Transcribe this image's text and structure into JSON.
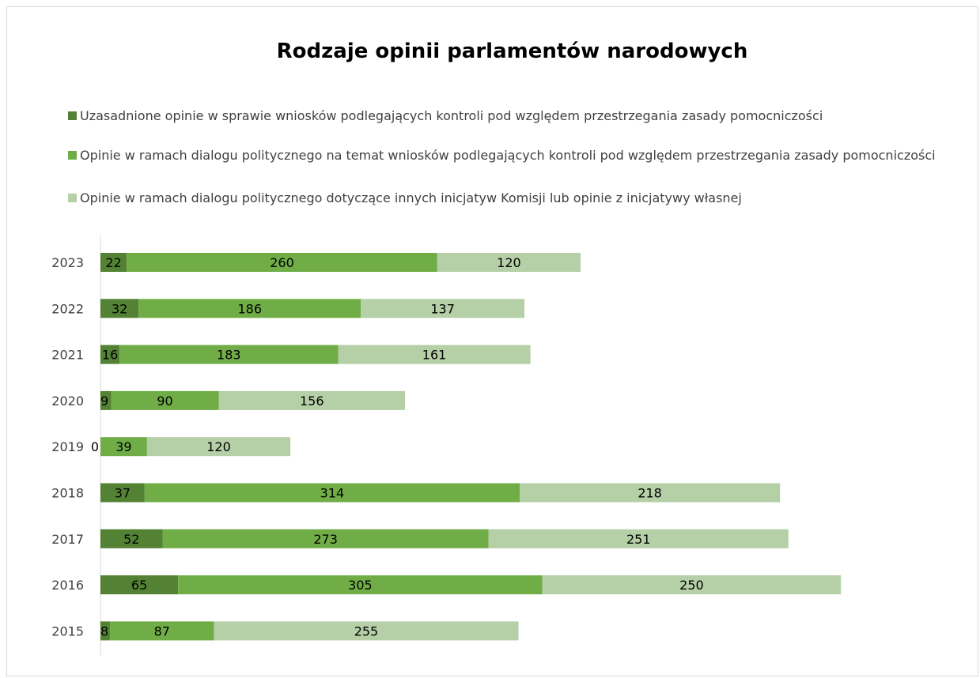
{
  "chart_data": {
    "type": "bar",
    "orientation": "horizontal",
    "stacked": true,
    "title": "Rodzaje opinii parlamentów narodowych",
    "categories": [
      "2023",
      "2022",
      "2021",
      "2020",
      "2019",
      "2018",
      "2017",
      "2016",
      "2015"
    ],
    "series": [
      {
        "name": "Uzasadnione opinie w sprawie wniosków podlegających kontroli pod względem przestrzegania zasady pomocniczości",
        "color": "#548235",
        "values": [
          22,
          32,
          16,
          9,
          0,
          37,
          52,
          65,
          8
        ]
      },
      {
        "name": "Opinie w ramach dialogu politycznego na temat wniosków podlegających kontroli pod względem przestrzegania zasady pomocniczości",
        "color": "#70ad47",
        "values": [
          260,
          186,
          183,
          90,
          39,
          314,
          273,
          305,
          87
        ]
      },
      {
        "name": "Opinie w ramach dialogu politycznego dotyczące innych inicjatyw Komisji lub opinie z inicjatywy własnej",
        "color": "#b5cfa7",
        "values": [
          120,
          137,
          161,
          156,
          120,
          218,
          251,
          250,
          255
        ]
      }
    ],
    "xlim": [
      0,
      622
    ],
    "grid": false,
    "legend_position": "top"
  }
}
